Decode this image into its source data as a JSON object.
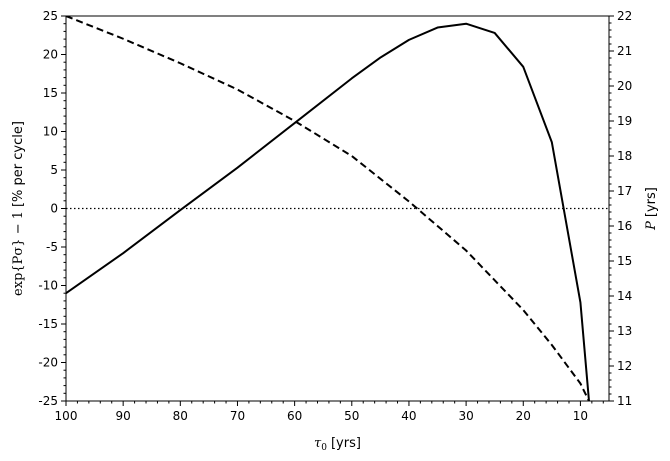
{
  "chart_data": {
    "type": "line",
    "xlabel_math": "τ",
    "xlabel_sub": "0",
    "xlabel_unit": "[yrs]",
    "ylabel_left_math": "exp{Pσ} − 1",
    "ylabel_left_unit": "[% per cycle]",
    "ylabel_right_math": "P",
    "ylabel_right_unit": "[yrs]",
    "xlim": [
      100,
      5
    ],
    "x_reversed": true,
    "ylim_left": [
      -25,
      25
    ],
    "ylim_right": [
      11,
      22
    ],
    "x_ticks": [
      100,
      90,
      80,
      70,
      60,
      50,
      40,
      30,
      20,
      10
    ],
    "x_tick_labels": [
      "100",
      "90",
      "80",
      "70",
      "60",
      "50",
      "40",
      "30",
      "20",
      "10"
    ],
    "y_left_ticks": [
      25,
      20,
      15,
      10,
      5,
      0,
      -5,
      -10,
      -15,
      -20,
      -25
    ],
    "y_left_tick_labels": [
      "25",
      "20",
      "15",
      "10",
      "5",
      "0",
      "-5",
      "-10",
      "-15",
      "-20",
      "-25"
    ],
    "y_right_ticks": [
      22,
      21,
      20,
      19,
      18,
      17,
      16,
      15,
      14,
      13,
      12,
      11
    ],
    "y_right_tick_labels": [
      "22",
      "21",
      "20",
      "19",
      "18",
      "17",
      "16",
      "15",
      "14",
      "13",
      "12",
      "11"
    ],
    "grid": false,
    "reference_line": {
      "axis": "left",
      "y": 0,
      "style": "dotted"
    },
    "series": [
      {
        "axis": "left",
        "style": "solid",
        "color": "#000000",
        "x": [
          100,
          90,
          80,
          70,
          60,
          50,
          45,
          40,
          35,
          30,
          25,
          20,
          15,
          10,
          8.5
        ],
        "y": [
          -11,
          -5.8,
          -0.2,
          5.3,
          11.1,
          16.9,
          19.6,
          21.9,
          23.5,
          24.0,
          22.8,
          18.4,
          8.6,
          -12.2,
          -25
        ]
      },
      {
        "axis": "right",
        "style": "dashed",
        "color": "#000000",
        "x": [
          100,
          90,
          80,
          70,
          60,
          50,
          40,
          30,
          20,
          15,
          10,
          8.5
        ],
        "y": [
          22.0,
          21.35,
          20.65,
          19.9,
          19.0,
          18.0,
          16.7,
          15.3,
          13.6,
          12.6,
          11.5,
          11.0
        ]
      }
    ]
  }
}
